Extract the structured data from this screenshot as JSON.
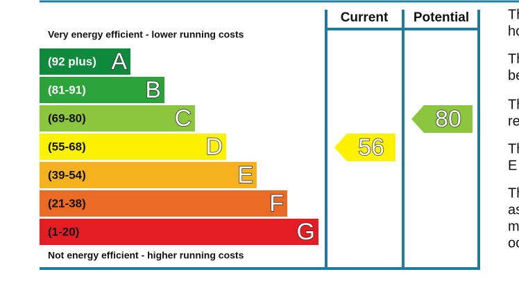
{
  "header": {
    "current": "Current",
    "potential": "Potential"
  },
  "top_note": "Very energy efficient - lower running costs",
  "bottom_note": "Not energy efficient - higher running costs",
  "bands": [
    {
      "range": "(92 plus)",
      "letter": "A"
    },
    {
      "range": "(81-91)",
      "letter": "B"
    },
    {
      "range": "(69-80)",
      "letter": "C"
    },
    {
      "range": "(55-68)",
      "letter": "D"
    },
    {
      "range": "(39-54)",
      "letter": "E"
    },
    {
      "range": "(21-38)",
      "letter": "F"
    },
    {
      "range": "(1-20)",
      "letter": "G"
    }
  ],
  "current_rating": "56",
  "potential_rating": "80",
  "side_text": [
    "Th",
    "ho",
    "Th",
    "be",
    "Th",
    "re",
    "Th",
    "E",
    "Th",
    "as",
    "m",
    "oc"
  ]
}
